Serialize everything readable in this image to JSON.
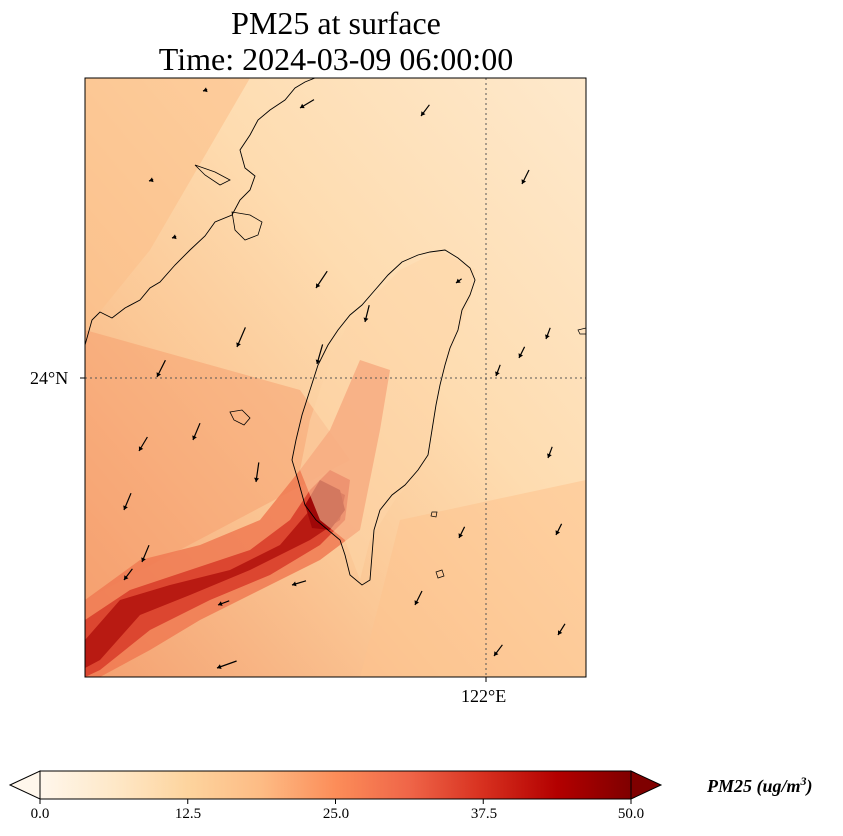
{
  "title": {
    "line1": "PM25 at surface",
    "line2": "Time: 2024-03-09 06:00:00"
  },
  "axes": {
    "lat_label": "24°N",
    "lon_label": "122°E"
  },
  "colorbar": {
    "label_main": "PM25 (ug/m",
    "label_sup": "3",
    "label_close": ")",
    "ticks": [
      "0.0",
      "12.5",
      "25.0",
      "37.5",
      "50.0"
    ],
    "min": 0,
    "max": 50,
    "colormap": "OrRd",
    "colors": [
      "#fff7ec",
      "#fee8c8",
      "#fdd49e",
      "#fdbb84",
      "#fc8d59",
      "#ef6548",
      "#d7301f",
      "#b30000",
      "#7f0000"
    ]
  },
  "map": {
    "coastline_color": "#000000",
    "gridline_color": "#555555",
    "wind_arrow_color": "#000000"
  }
}
